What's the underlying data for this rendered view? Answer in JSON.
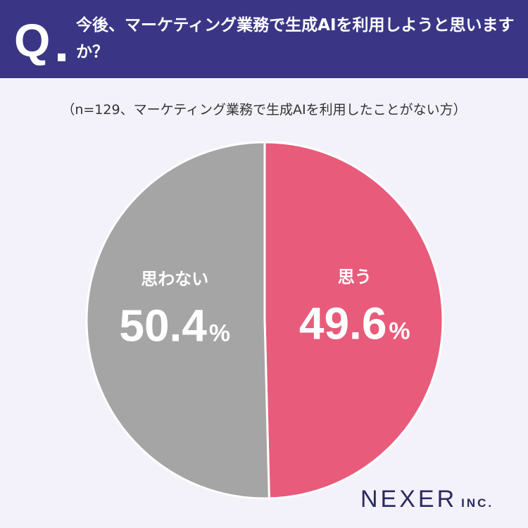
{
  "header": {
    "q_label": "Q",
    "question": "今後、マーケティング業務で生成AIを利用しようと思いますか？"
  },
  "subtitle": "（n=129、マーケティング業務で生成AIを利用したことがない方）",
  "chart_data": {
    "type": "pie",
    "slices": [
      {
        "label": "思う",
        "value": 49.6,
        "color": "#e85b7a"
      },
      {
        "label": "思わない",
        "value": 50.4,
        "color": "#a5a5a5"
      }
    ],
    "unit": "%"
  },
  "brand": {
    "name": "NEXER",
    "suffix": "INC."
  }
}
